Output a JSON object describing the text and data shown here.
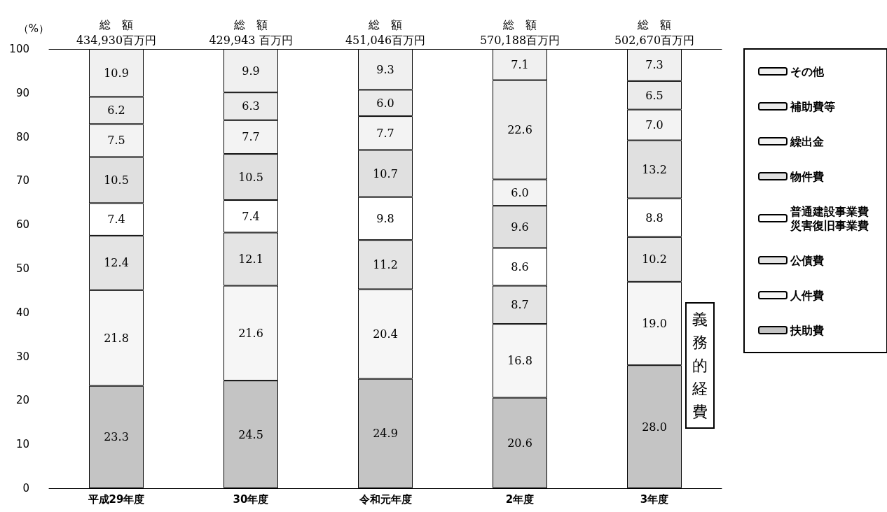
{
  "chart_data": {
    "type": "bar",
    "stacked": true,
    "ylabel": "（%）",
    "categories": [
      "平成29年度",
      "30年度",
      "令和元年度",
      "2年度",
      "3年度"
    ],
    "ylim": [
      0,
      100
    ],
    "yticks": [
      0,
      10,
      20,
      30,
      40,
      50,
      60,
      70,
      80,
      90,
      100
    ],
    "grid": false,
    "legend": "right",
    "totals": [
      "総　額\n434,930百万円",
      "総　額\n429,943 百万円",
      "総　額\n451,046百万円",
      "総　額\n570,188百万円",
      "総　額\n502,670百万円"
    ],
    "annotations": [
      "義務的経費"
    ],
    "series": [
      {
        "name": "扶助費",
        "color": "#c4c4c4",
        "values": [
          23.3,
          24.5,
          24.9,
          20.6,
          28.0
        ],
        "value_labels": [
          "23.3",
          "24.5",
          "24.9",
          "20.6",
          "28.0"
        ]
      },
      {
        "name": "人件費",
        "color": "#f6f6f6",
        "values": [
          21.8,
          21.6,
          20.4,
          16.8,
          19.0
        ],
        "value_labels": [
          "21.8",
          "21.6",
          "20.4",
          "16.8",
          "19.0"
        ]
      },
      {
        "name": "公債費",
        "color": "#e4e4e4",
        "values": [
          12.4,
          12.1,
          11.2,
          8.7,
          10.2
        ],
        "value_labels": [
          "12.4",
          "12.1",
          "11.2",
          "8.7",
          "10.2"
        ]
      },
      {
        "name": "普通建設事業費災害復旧事業費",
        "color": "#ffffff",
        "values": [
          7.4,
          7.4,
          9.8,
          8.6,
          8.8
        ],
        "value_labels": [
          "7.4",
          "7.4",
          "9.8",
          "8.6",
          "8.8"
        ]
      },
      {
        "name": "物件費",
        "color": "#e0e0e0",
        "values": [
          10.5,
          10.5,
          10.7,
          9.6,
          13.2
        ],
        "value_labels": [
          "10.5",
          "10.5",
          "10.7",
          "9.6",
          "13.2"
        ]
      },
      {
        "name": "繰出金",
        "color": "#f3f3f3",
        "values": [
          7.5,
          7.7,
          7.7,
          6.0,
          7.0
        ],
        "value_labels": [
          "7.5",
          "7.7",
          "7.7",
          "6.0",
          "7.0"
        ]
      },
      {
        "name": "補助費等",
        "color": "#ebebeb",
        "values": [
          6.2,
          6.3,
          6.0,
          22.6,
          6.5
        ],
        "value_labels": [
          "6.2",
          "6.3",
          "6.0",
          "22.6",
          "6.5"
        ]
      },
      {
        "name": "その他",
        "color": "#f0f0f0",
        "values": [
          10.9,
          9.9,
          9.3,
          7.1,
          7.3
        ],
        "value_labels": [
          "10.9",
          "9.9",
          "9.3",
          "7.1",
          "7.3"
        ]
      }
    ]
  }
}
